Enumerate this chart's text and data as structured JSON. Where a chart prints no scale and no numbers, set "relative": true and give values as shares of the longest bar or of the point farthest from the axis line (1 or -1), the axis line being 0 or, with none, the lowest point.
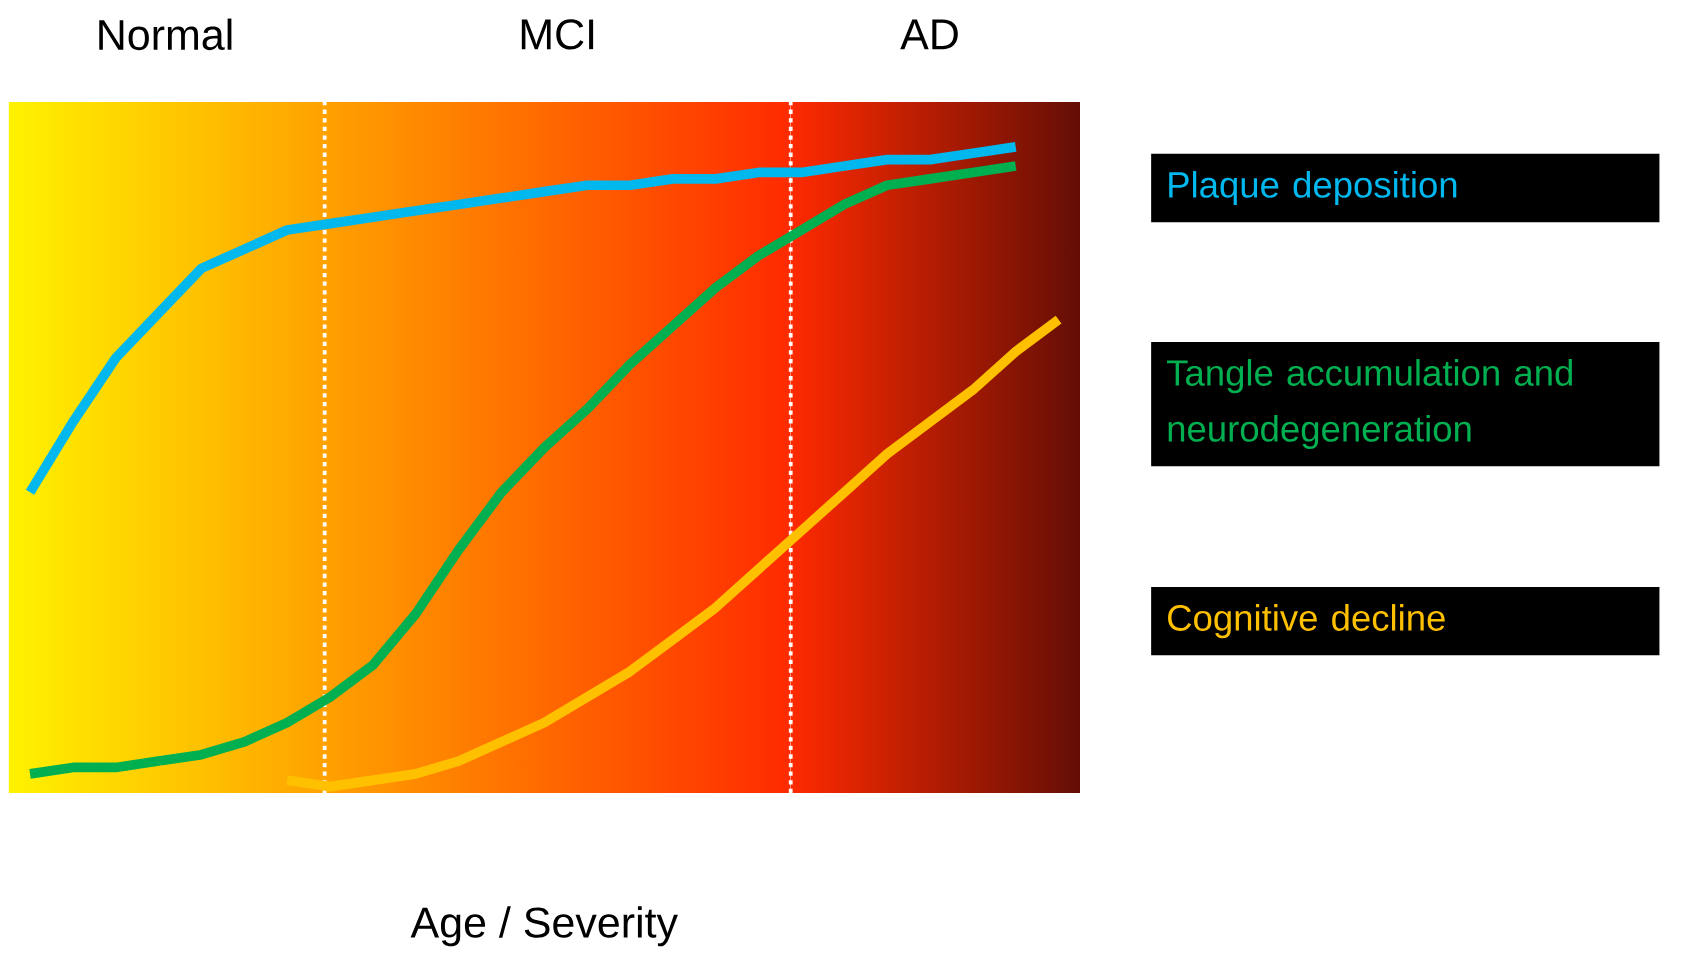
{
  "chart_data": {
    "type": "line",
    "relative": true,
    "xlabel": "Age / Severity",
    "marker": "none",
    "line_style": "solid",
    "categories": [
      null,
      null,
      null,
      null,
      null,
      null,
      null,
      null,
      null,
      null,
      null,
      null,
      null,
      null,
      null,
      null,
      null,
      null,
      null,
      null,
      null,
      null,
      null,
      null,
      null
    ],
    "annotations": [
      "Normal",
      "MCI",
      "AD"
    ],
    "series": [
      {
        "name": "Plaque deposition",
        "color": "#00b8ee",
        "values": [
          0.46,
          0.57,
          0.67,
          0.74,
          0.81,
          0.84,
          0.87,
          0.88,
          0.89,
          0.9,
          0.91,
          0.92,
          0.93,
          0.94,
          0.94,
          0.95,
          0.95,
          0.96,
          0.96,
          0.97,
          0.98,
          0.98,
          0.99,
          1.0,
          null
        ]
      },
      {
        "name": "Tangle accumulation and neurodegeneration",
        "color": "#00b050",
        "values": [
          0.02,
          0.03,
          0.03,
          0.04,
          0.05,
          0.07,
          0.1,
          0.14,
          0.19,
          0.27,
          0.37,
          0.46,
          0.53,
          0.59,
          0.66,
          0.72,
          0.78,
          0.83,
          0.87,
          0.91,
          0.94,
          0.95,
          0.96,
          0.97,
          null
        ]
      },
      {
        "name": "Cognitive decline",
        "color": "#ffc000",
        "values": [
          null,
          null,
          null,
          null,
          null,
          null,
          0.01,
          0,
          0.01,
          0.02,
          0.04,
          0.07,
          0.1,
          0.14,
          0.18,
          0.23,
          0.28,
          0.34,
          0.4,
          0.46,
          0.52,
          0.57,
          0.62,
          0.68,
          0.73
        ]
      }
    ]
  }
}
